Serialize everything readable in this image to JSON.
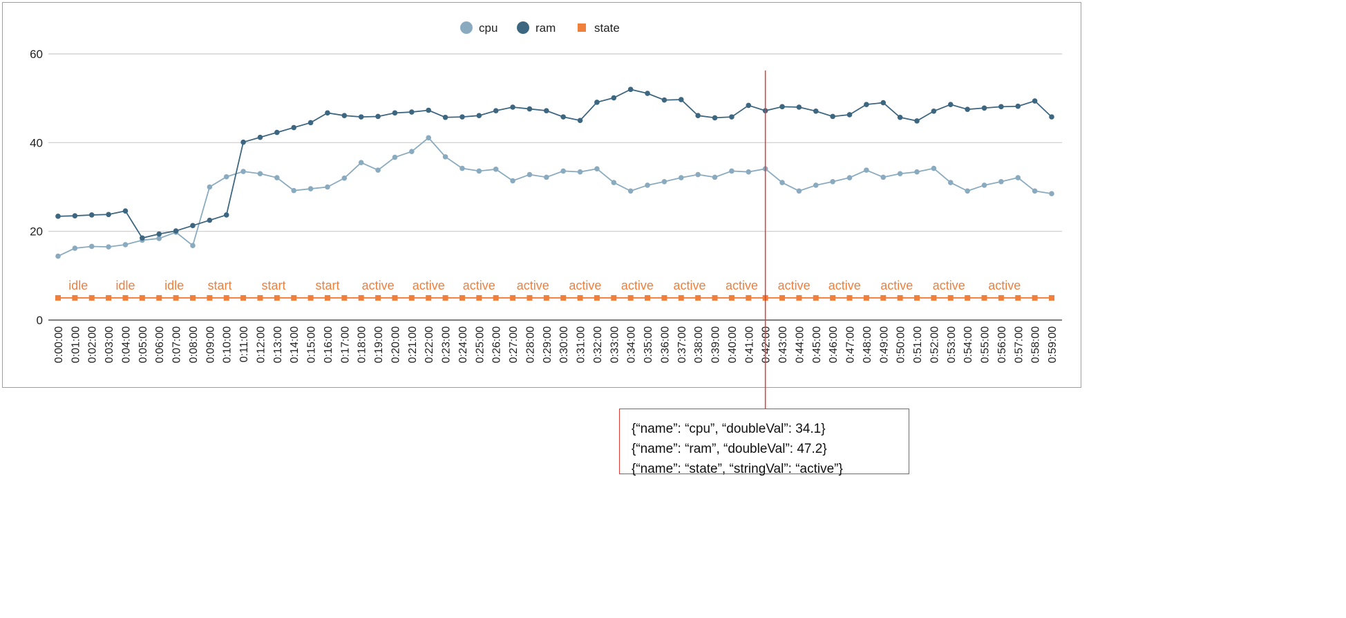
{
  "chart_data": {
    "type": "line",
    "title": "",
    "xlabel": "",
    "ylabel": "",
    "ylim": [
      0,
      60
    ],
    "yticks": [
      0,
      20,
      40,
      60
    ],
    "grid": true,
    "legend_position": "top-center",
    "x": [
      "0:00:00",
      "0:01:00",
      "0:02:00",
      "0:03:00",
      "0:04:00",
      "0:05:00",
      "0:06:00",
      "0:07:00",
      "0:08:00",
      "0:09:00",
      "0:10:00",
      "0:11:00",
      "0:12:00",
      "0:13:00",
      "0:14:00",
      "0:15:00",
      "0:16:00",
      "0:17:00",
      "0:18:00",
      "0:19:00",
      "0:20:00",
      "0:21:00",
      "0:22:00",
      "0:23:00",
      "0:24:00",
      "0:25:00",
      "0:26:00",
      "0:27:00",
      "0:28:00",
      "0:29:00",
      "0:30:00",
      "0:31:00",
      "0:32:00",
      "0:33:00",
      "0:34:00",
      "0:35:00",
      "0:36:00",
      "0:37:00",
      "0:38:00",
      "0:39:00",
      "0:40:00",
      "0:41:00",
      "0:42:00",
      "0:43:00",
      "0:44:00",
      "0:45:00",
      "0:46:00",
      "0:47:00",
      "0:48:00",
      "0:49:00",
      "0:50:00",
      "0:51:00",
      "0:52:00",
      "0:53:00",
      "0:54:00",
      "0:55:00",
      "0:56:00",
      "0:57:00",
      "0:58:00",
      "0:59:00"
    ],
    "series": [
      {
        "name": "cpu",
        "color": "#8aabbf",
        "marker": "circle",
        "values": [
          14.4,
          16.2,
          16.6,
          16.5,
          17.0,
          18.0,
          18.4,
          19.8,
          16.8,
          30.0,
          32.3,
          33.5,
          33.0,
          32.1,
          29.2,
          29.6,
          30.0,
          32.0,
          35.5,
          33.8,
          36.7,
          38.0,
          41.1,
          36.8,
          34.2,
          33.6,
          34.0,
          31.4,
          32.8,
          32.2,
          33.6,
          33.4,
          34.1,
          31.0,
          29.1,
          30.4,
          31.2,
          32.1,
          32.8,
          32.2,
          33.6,
          33.4,
          34.1,
          31.0,
          29.1,
          30.4,
          31.2,
          32.1,
          33.8,
          32.2,
          33.0,
          33.4,
          34.2,
          31.0,
          29.1,
          30.4,
          31.2,
          32.1,
          29.1,
          28.5
        ]
      },
      {
        "name": "ram",
        "color": "#3d6680",
        "marker": "circle",
        "values": [
          23.4,
          23.5,
          23.7,
          23.8,
          24.6,
          18.5,
          19.4,
          20.1,
          21.3,
          22.5,
          23.7,
          40.1,
          41.2,
          42.3,
          43.4,
          44.5,
          46.7,
          46.1,
          45.8,
          45.9,
          46.7,
          46.9,
          47.3,
          45.7,
          45.8,
          46.1,
          47.2,
          48.0,
          47.6,
          47.2,
          45.8,
          45.0,
          49.1,
          50.1,
          52.0,
          51.1,
          49.6,
          49.7,
          46.1,
          45.6,
          45.8,
          48.4,
          47.2,
          48.1,
          48.0,
          47.1,
          45.9,
          46.3,
          48.6,
          49.0,
          45.7,
          44.9,
          47.1,
          48.6,
          47.5,
          47.8,
          48.1,
          48.2,
          49.4,
          45.8
        ]
      },
      {
        "name": "state",
        "color": "#f07f3c",
        "marker": "square",
        "constant_value": 5,
        "labels": [
          {
            "at": 1.2,
            "text": "idle"
          },
          {
            "at": 4,
            "text": "idle"
          },
          {
            "at": 6.9,
            "text": "idle"
          },
          {
            "at": 9.6,
            "text": "start"
          },
          {
            "at": 12.8,
            "text": "start"
          },
          {
            "at": 16,
            "text": "start"
          },
          {
            "at": 19,
            "text": "active"
          },
          {
            "at": 22,
            "text": "active"
          },
          {
            "at": 25,
            "text": "active"
          },
          {
            "at": 28.2,
            "text": "active"
          },
          {
            "at": 31.3,
            "text": "active"
          },
          {
            "at": 34.4,
            "text": "active"
          },
          {
            "at": 37.5,
            "text": "active"
          },
          {
            "at": 40.6,
            "text": "active"
          },
          {
            "at": 43.7,
            "text": "active"
          },
          {
            "at": 46.7,
            "text": "active"
          },
          {
            "at": 49.8,
            "text": "active"
          },
          {
            "at": 52.9,
            "text": "active"
          },
          {
            "at": 56.2,
            "text": "active"
          }
        ]
      }
    ],
    "highlight": {
      "x": "0:42:00",
      "color": "#e53935"
    }
  },
  "tooltip": {
    "lines": [
      "{“name”: “cpu”, “doubleVal”: 34.1}",
      "{“name”: “ram”, “doubleVal”: 47.2}",
      "{“name”: “state”, “stringVal”: “active”}"
    ]
  }
}
